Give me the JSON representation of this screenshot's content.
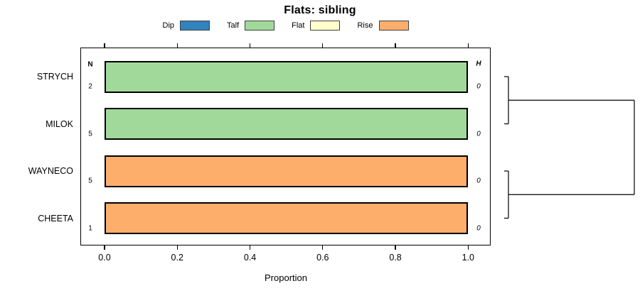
{
  "title": "Flats: sibling",
  "legend": {
    "items": [
      {
        "label": "Dip",
        "color": "#3182bd"
      },
      {
        "label": "Talf",
        "color": "#a1d99b"
      },
      {
        "label": "Flat",
        "color": "#ffffcc"
      },
      {
        "label": "Rise",
        "color": "#fdae6b"
      }
    ]
  },
  "columns": {
    "left_header": "N",
    "right_header": "H"
  },
  "chart_data": {
    "type": "bar",
    "orientation": "horizontal",
    "title": "Flats: sibling",
    "xlabel": "Proportion",
    "xlim": [
      0,
      1
    ],
    "x_ticks": [
      0.0,
      0.2,
      0.4,
      0.6,
      0.8,
      1.0
    ],
    "x_tick_labels": [
      "0.0",
      "0.2",
      "0.4",
      "0.6",
      "0.8",
      "1.0"
    ],
    "categories": [
      "STRYCH",
      "MILOK",
      "WAYNECO",
      "CHEETA"
    ],
    "rows": [
      {
        "category": "STRYCH",
        "n": "2",
        "state": "Talf",
        "value": 1.0,
        "h": "0"
      },
      {
        "category": "MILOK",
        "n": "5",
        "state": "Talf",
        "value": 1.0,
        "h": "0"
      },
      {
        "category": "WAYNECO",
        "n": "5",
        "state": "Rise",
        "value": 1.0,
        "h": "0"
      },
      {
        "category": "CHEETA",
        "n": "1",
        "state": "Rise",
        "value": 1.0,
        "h": "0"
      }
    ],
    "dendrogram": {
      "clusters": [
        [
          "STRYCH",
          "MILOK"
        ],
        [
          "WAYNECO",
          "CHEETA"
        ]
      ],
      "merge_heights": [
        "0",
        "0",
        "0",
        "0"
      ],
      "legend_position": "top",
      "grid": false
    }
  }
}
